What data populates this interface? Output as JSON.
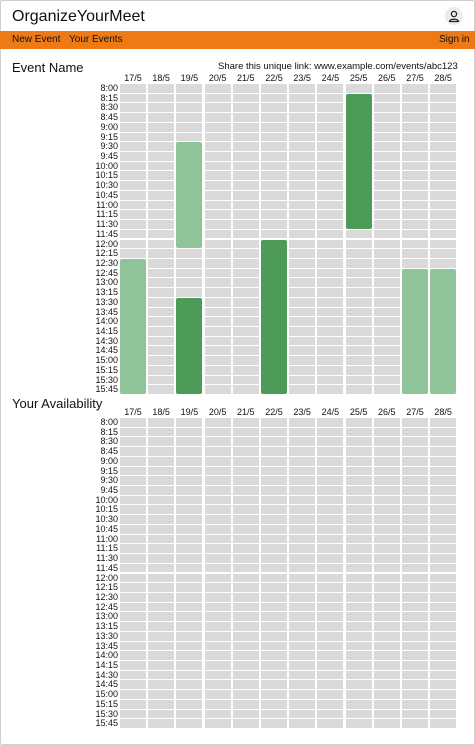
{
  "app": {
    "title": "OrganizeYourMeet",
    "nav": {
      "new_event": "New Event",
      "your_events": "Your Events",
      "sign_in": "Sign in"
    }
  },
  "event": {
    "name": "Event Name",
    "share_label": "Share this unique link: www.example.com/events/abc123"
  },
  "availability": {
    "title": "Your Availability"
  },
  "days": [
    "17/5",
    "18/5",
    "19/5",
    "20/5",
    "21/5",
    "22/5",
    "23/5",
    "24/5",
    "25/5",
    "26/5",
    "27/5",
    "28/5"
  ],
  "times": [
    "8:00",
    "8:15",
    "8:30",
    "8:45",
    "9:00",
    "9:15",
    "9:30",
    "9:45",
    "10:00",
    "10:15",
    "10:30",
    "10:45",
    "11:00",
    "11:15",
    "11:30",
    "11:45",
    "12:00",
    "12:15",
    "12:30",
    "12:45",
    "13:00",
    "13:15",
    "13:30",
    "13:45",
    "14:00",
    "14:15",
    "14:30",
    "14:45",
    "15:00",
    "15:15",
    "15:30",
    "15:45"
  ],
  "colors": {
    "accent": "#ee7a16",
    "empty": "#dadada",
    "light_green": "#8fc49b",
    "dark_green": "#4e9a57"
  },
  "event_availability": [
    "000000000000",
    "000000002000",
    "000000002000",
    "000000002000",
    "000000002000",
    "000000002000",
    "001000002000",
    "001000002000",
    "001000002000",
    "001000002000",
    "001000002000",
    "001000002000",
    "001000002000",
    "001000002000",
    "001000002000",
    "001000000000",
    "001002000000",
    "000002000000",
    "100002000000",
    "100002000011",
    "100002000011",
    "100002000011",
    "102002000011",
    "102002000011",
    "102002000011",
    "102002000011",
    "102002000011",
    "102002000011",
    "102002000011",
    "102002000011",
    "102002000011",
    "102002000011"
  ]
}
